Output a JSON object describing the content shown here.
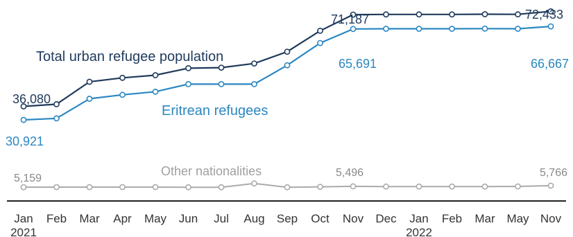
{
  "chart_data": {
    "type": "line",
    "categories": [
      "Jan",
      "Feb",
      "Mar",
      "Apr",
      "May",
      "Jun",
      "Jul",
      "Aug",
      "Sep",
      "Oct",
      "Nov",
      "Dec",
      "Jan",
      "Feb",
      "Mar",
      "May",
      "Nov"
    ],
    "year_labels": [
      {
        "index": 0,
        "text": "2021"
      },
      {
        "index": 12,
        "text": "2022"
      }
    ],
    "series": [
      {
        "name": "Total urban refugee population",
        "color": "#1f3a5c",
        "values": [
          36080,
          36900,
          45500,
          47000,
          48000,
          50700,
          50900,
          52500,
          57000,
          65000,
          71187,
          71250,
          71270,
          71260,
          71330,
          71280,
          72433
        ]
      },
      {
        "name": "Eritrean refugees",
        "color": "#2b87c2",
        "values": [
          30921,
          31500,
          39000,
          40500,
          41700,
          44600,
          44600,
          44600,
          51800,
          60300,
          65691,
          65780,
          65780,
          65780,
          65840,
          65770,
          66667
        ]
      },
      {
        "name": "Other nationalities",
        "color": "#aaaaaa",
        "values": [
          5159,
          5200,
          5200,
          5200,
          5200,
          5150,
          5150,
          6600,
          5150,
          5300,
          5496,
          5400,
          5400,
          5400,
          5400,
          5450,
          5766
        ]
      }
    ],
    "value_labels": [
      "36,080",
      "30,921",
      "71,187",
      "65,691",
      "72,433",
      "66,667",
      "5,159",
      "5,496",
      "5,766"
    ],
    "xlabel": "",
    "ylabel": "",
    "ylim": [
      0,
      80000
    ],
    "grid": false,
    "legend": "inline labels"
  }
}
